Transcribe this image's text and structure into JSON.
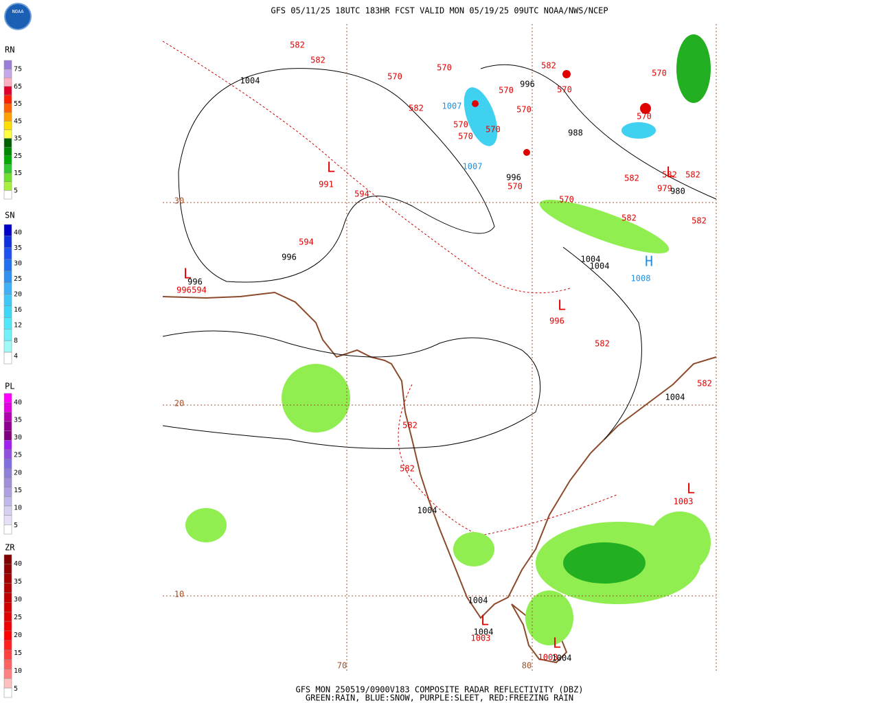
{
  "header": {
    "title": "GFS 05/11/25 18UTC 183HR FCST VALID MON 05/19/25 09UTC NOAA/NWS/NCEP",
    "logo": "NOAA"
  },
  "legends": [
    {
      "title": "RN",
      "labels": [
        "75",
        "65",
        "55",
        "45",
        "35",
        "25",
        "15",
        "5"
      ],
      "colors": [
        "#9a7fd8",
        "#c4a8e8",
        "#ffb0c0",
        "#e0002a",
        "#ff2000",
        "#ff6000",
        "#ffa000",
        "#ffe000",
        "#ffff40",
        "#006000",
        "#008800",
        "#00aa00",
        "#30c830",
        "#70e030",
        "#a8f040",
        "#ffffff"
      ]
    },
    {
      "title": "SN",
      "labels": [
        "40",
        "35",
        "30",
        "25",
        "20",
        "16",
        "12",
        "8",
        "4"
      ],
      "colors": [
        "#0000c8",
        "#1030e0",
        "#2050f0",
        "#2070f0",
        "#3090f0",
        "#40b0f8",
        "#40c8f8",
        "#40d8f8",
        "#50e8f8",
        "#70f0f8",
        "#a0f8f8",
        "#ffffff"
      ]
    },
    {
      "title": "PL",
      "labels": [
        "40",
        "35",
        "30",
        "25",
        "20",
        "15",
        "10",
        "5"
      ],
      "colors": [
        "#ff00ff",
        "#e000e0",
        "#b000b0",
        "#900090",
        "#800080",
        "#a020f0",
        "#9050e0",
        "#8070e0",
        "#9080d8",
        "#a090d8",
        "#b0a0e0",
        "#c0b8e8",
        "#d8d0f0",
        "#e8e0f8",
        "#ffffff"
      ]
    },
    {
      "title": "ZR",
      "labels": [
        "40",
        "35",
        "30",
        "25",
        "20",
        "15",
        "10",
        "5"
      ],
      "colors": [
        "#800000",
        "#900000",
        "#a00000",
        "#b00000",
        "#c00000",
        "#d00000",
        "#e00000",
        "#f00000",
        "#ff0000",
        "#ff2020",
        "#ff4040",
        "#ff6060",
        "#ff8080",
        "#ffc0c0",
        "#ffffff"
      ]
    }
  ],
  "map": {
    "lat_labels": [
      "30",
      "20",
      "10"
    ],
    "lon_labels": [
      "70",
      "80"
    ],
    "height_labels": [
      "582",
      "582",
      "570",
      "570",
      "582",
      "570",
      "570",
      "582",
      "570",
      "570",
      "570",
      "570",
      "570",
      "570",
      "582",
      "582",
      "582",
      "570",
      "570",
      "582",
      "582",
      "594",
      "594",
      "991",
      "996",
      "594",
      "996",
      "582",
      "582",
      "582",
      "582",
      "1003",
      "1003",
      "1003",
      "979"
    ],
    "pressure_labels": [
      "1004",
      "996",
      "988",
      "996",
      "980",
      "996",
      "996",
      "1004",
      "1004",
      "1004",
      "1004",
      "1004",
      "1004",
      "1004"
    ],
    "blue_labels": [
      "1007",
      "1007",
      "1008"
    ],
    "low_symbols": [
      "L",
      "L",
      "L",
      "L",
      "L",
      "L",
      "L"
    ],
    "high_symbols": [
      "H"
    ]
  },
  "footer": {
    "line1": "GFS MON 250519/0900V183 COMPOSITE RADAR REFLECTIVITY (DBZ)",
    "line2": "GREEN:RAIN, BLUE:SNOW, PURPLE:SLEET, RED:FREEZING RAIN"
  }
}
